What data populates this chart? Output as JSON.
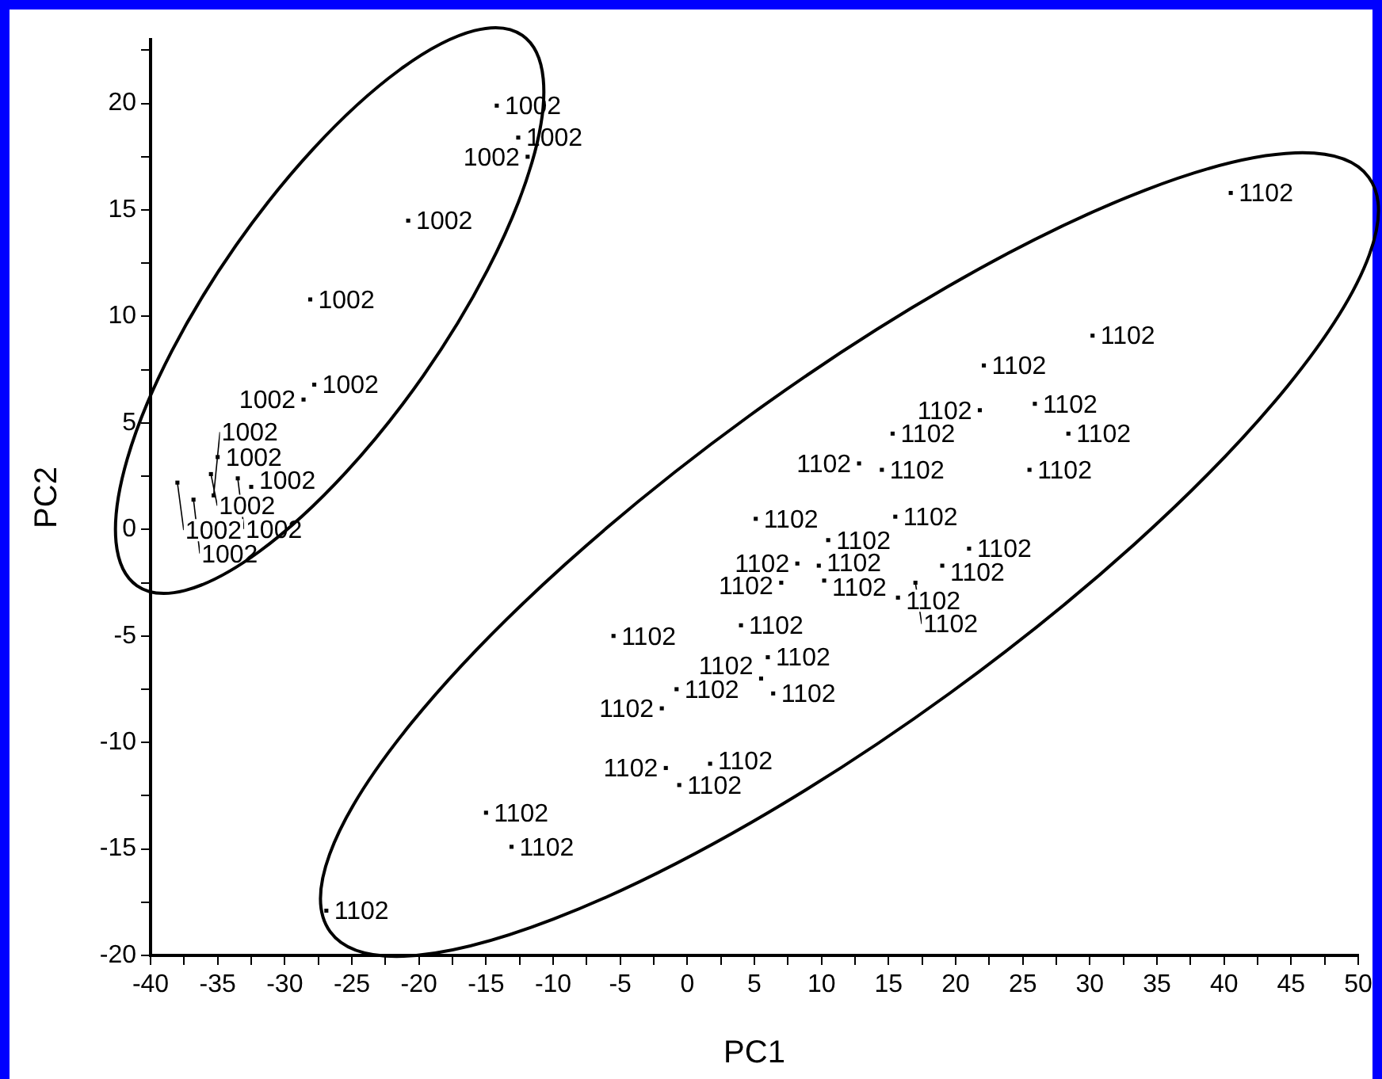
{
  "chart_data": {
    "type": "scatter",
    "xlabel": "PC1",
    "ylabel": "PC2",
    "marker": "square",
    "grid": false,
    "legend": false,
    "xlim": [
      -40,
      50
    ],
    "ylim": [
      -20,
      23
    ],
    "xticks": [
      -40,
      {
        "value": -37.5,
        "label": null
      },
      -35,
      {
        "value": -32.5,
        "label": null
      },
      -30,
      {
        "value": -27.5,
        "label": null
      },
      -25,
      {
        "value": -22.5,
        "label": null
      },
      -20,
      {
        "value": -17.5,
        "label": null
      },
      -15,
      {
        "value": -12.5,
        "label": null
      },
      -10,
      {
        "value": -7.5,
        "label": null
      },
      -5,
      {
        "value": -2.5,
        "label": null
      },
      0,
      {
        "value": 2.5,
        "label": null
      },
      5,
      {
        "value": 7.5,
        "label": null
      },
      10,
      {
        "value": 12.5,
        "label": null
      },
      15,
      {
        "value": 17.5,
        "label": null
      },
      20,
      {
        "value": 22.5,
        "label": null
      },
      25,
      {
        "value": 27.5,
        "label": null
      },
      30,
      {
        "value": 32.5,
        "label": null
      },
      35,
      {
        "value": 37.5,
        "label": null
      },
      40,
      {
        "value": 42.5,
        "label": null
      },
      45,
      {
        "value": 47.5,
        "label": null
      },
      50
    ],
    "yticks": [
      -20,
      {
        "value": -17.5,
        "label": null
      },
      -15,
      {
        "value": -12.5,
        "label": null
      },
      -10,
      {
        "value": -7.5,
        "label": null
      },
      -5,
      {
        "value": -2.5,
        "label": null
      },
      0,
      {
        "value": 2.5,
        "label": null
      },
      5,
      {
        "value": 7.5,
        "label": null
      },
      10,
      {
        "value": 12.5,
        "label": null
      },
      15,
      {
        "value": 17.5,
        "label": null
      },
      20,
      {
        "value": 22.5,
        "label": null
      }
    ],
    "series": [
      {
        "color": "#000000",
        "x": [
          -14.2,
          -12.6,
          -11.9,
          -20.8,
          -28.1,
          -27.8,
          -28.6,
          -35,
          -35.5,
          -38,
          -36.8,
          -35.3,
          -33.5,
          -32.5
        ],
        "values": [
          19.9,
          18.4,
          17.5,
          14.5,
          10.8,
          6.8,
          6.1,
          3.4,
          2.6,
          2.2,
          1.4,
          1.6,
          2.4,
          2
        ]
      },
      {
        "color": "#000000",
        "x": [
          40.5,
          30.2,
          22.1,
          21.8,
          25.9,
          28.4,
          15.3,
          12.8,
          14.5,
          25.5,
          5.1,
          15.5,
          8.2,
          9.8,
          7,
          10.2,
          21,
          15.7,
          10.5,
          19,
          17,
          -5.5,
          4,
          6,
          -0.8,
          -1.9,
          6.4,
          -1.6,
          -0.6,
          1.7,
          -15,
          -13.1,
          -26.9,
          5.5
        ],
        "values": [
          15.8,
          9.1,
          7.7,
          5.6,
          5.9,
          4.5,
          4.5,
          3.1,
          2.8,
          2.8,
          0.5,
          0.6,
          -1.6,
          -1.7,
          -2.5,
          -2.4,
          -0.9,
          -3.2,
          -0.5,
          -1.7,
          -2.5,
          -5,
          -4.5,
          -6,
          -7.5,
          -8.4,
          -7.7,
          -11.2,
          -12,
          -11,
          -13.3,
          -14.9,
          -17.9,
          -7
        ]
      }
    ],
    "annotations": [
      {
        "text": "1002",
        "x": -14.2,
        "y": 19.9
      },
      {
        "text": "1002",
        "x": -12.6,
        "y": 18.4
      },
      {
        "text": "1002",
        "x": -11.9,
        "y": 17.5
      },
      {
        "text": "1002",
        "x": -20.8,
        "y": 14.5
      },
      {
        "text": "1002",
        "x": -28.1,
        "y": 10.8
      },
      {
        "text": "1002",
        "x": -27.8,
        "y": 6.8
      },
      {
        "text": "1002",
        "x": -28.6,
        "y": 6.1
      },
      {
        "text": "1002",
        "x": -35,
        "y": 3.4
      },
      {
        "text": "1002",
        "x": -35.5,
        "y": 2.6
      },
      {
        "text": "1002",
        "x": -38,
        "y": 2.2
      },
      {
        "text": "1002",
        "x": -36.8,
        "y": 1.4
      },
      {
        "text": "1002",
        "x": -35.3,
        "y": 1.6
      },
      {
        "text": "1002",
        "x": -33.5,
        "y": 2.4
      },
      {
        "text": "1002",
        "x": -32.5,
        "y": 2
      },
      {
        "text": "1102",
        "x": 40.5,
        "y": 15.8
      },
      {
        "text": "1102",
        "x": 30.2,
        "y": 9.1
      },
      {
        "text": "1102",
        "x": 22.1,
        "y": 7.7
      },
      {
        "text": "1102",
        "x": 21.8,
        "y": 5.6
      },
      {
        "text": "1102",
        "x": 25.9,
        "y": 5.9
      },
      {
        "text": "1102",
        "x": 28.4,
        "y": 4.5
      },
      {
        "text": "1102",
        "x": 15.3,
        "y": 4.5
      },
      {
        "text": "1102",
        "x": 12.8,
        "y": 3.1
      },
      {
        "text": "1102",
        "x": 14.5,
        "y": 2.8
      },
      {
        "text": "1102",
        "x": 25.5,
        "y": 2.8
      },
      {
        "text": "1102",
        "x": 5.1,
        "y": 0.5
      },
      {
        "text": "1102",
        "x": 15.5,
        "y": 0.6
      },
      {
        "text": "1102",
        "x": 8.2,
        "y": -1.6
      },
      {
        "text": "1102",
        "x": 9.8,
        "y": -1.7
      },
      {
        "text": "1102",
        "x": 7,
        "y": -2.5
      },
      {
        "text": "1102",
        "x": 10.2,
        "y": -2.4
      },
      {
        "text": "1102",
        "x": 21,
        "y": -0.9
      },
      {
        "text": "1102",
        "x": 15.7,
        "y": -3.2
      },
      {
        "text": "1102",
        "x": 10.5,
        "y": -0.5
      },
      {
        "text": "1102",
        "x": 19,
        "y": -1.7
      },
      {
        "text": "1102",
        "x": 17,
        "y": -2.5
      },
      {
        "text": "1102",
        "x": -5.5,
        "y": -5
      },
      {
        "text": "1102",
        "x": 4,
        "y": -4.5
      },
      {
        "text": "1102",
        "x": 6,
        "y": -6
      },
      {
        "text": "1102",
        "x": -0.8,
        "y": -7.5
      },
      {
        "text": "1102",
        "x": -1.9,
        "y": -8.4
      },
      {
        "text": "1102",
        "x": 6.4,
        "y": -7.7
      },
      {
        "text": "1102",
        "x": -1.6,
        "y": -11.2
      },
      {
        "text": "1102",
        "x": -0.6,
        "y": -12
      },
      {
        "text": "1102",
        "x": 1.7,
        "y": -11
      },
      {
        "text": "1102",
        "x": -15,
        "y": -13.3
      },
      {
        "text": "1102",
        "x": -13.1,
        "y": -14.9
      },
      {
        "text": "1102",
        "x": -26.9,
        "y": -17.9
      },
      {
        "text": "1102",
        "x": 5.5,
        "y": -7
      }
    ]
  }
}
